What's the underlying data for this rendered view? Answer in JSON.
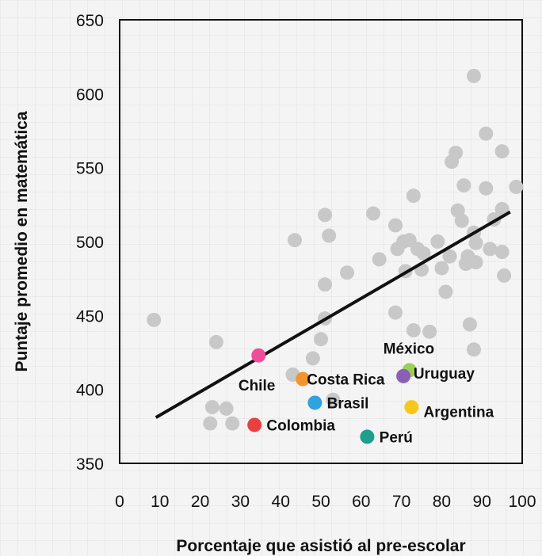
{
  "chart_data": {
    "type": "scatter",
    "xlabel": "Porcentaje que asistió al pre-escolar",
    "ylabel": "Puntaje promedio en matemática",
    "xlim": [
      0,
      100
    ],
    "ylim": [
      350,
      650
    ],
    "x_ticks": [
      0,
      10,
      20,
      30,
      40,
      50,
      60,
      70,
      80,
      90,
      100
    ],
    "y_ticks": [
      350,
      400,
      450,
      500,
      550,
      600,
      650
    ],
    "grid": false,
    "legend": "none",
    "colors": {
      "other": "#c8c8c8",
      "trend": "#111111",
      "frame": "#111111"
    },
    "trendline": {
      "x": [
        9,
        97
      ],
      "y": [
        381,
        520
      ]
    },
    "other_countries": [
      {
        "x": 8.5,
        "y": 447
      },
      {
        "x": 24,
        "y": 432
      },
      {
        "x": 23,
        "y": 388
      },
      {
        "x": 26.5,
        "y": 387
      },
      {
        "x": 22.5,
        "y": 377
      },
      {
        "x": 28,
        "y": 377
      },
      {
        "x": 43.5,
        "y": 501
      },
      {
        "x": 43,
        "y": 410
      },
      {
        "x": 48,
        "y": 421
      },
      {
        "x": 50,
        "y": 434
      },
      {
        "x": 51,
        "y": 448
      },
      {
        "x": 51,
        "y": 518
      },
      {
        "x": 52,
        "y": 504
      },
      {
        "x": 51,
        "y": 471
      },
      {
        "x": 53,
        "y": 393
      },
      {
        "x": 56.5,
        "y": 479
      },
      {
        "x": 63,
        "y": 519
      },
      {
        "x": 64.5,
        "y": 488
      },
      {
        "x": 68.5,
        "y": 511
      },
      {
        "x": 69,
        "y": 495
      },
      {
        "x": 68.5,
        "y": 452
      },
      {
        "x": 70.5,
        "y": 500
      },
      {
        "x": 71,
        "y": 480
      },
      {
        "x": 72,
        "y": 501
      },
      {
        "x": 73,
        "y": 531
      },
      {
        "x": 73,
        "y": 440
      },
      {
        "x": 74,
        "y": 495
      },
      {
        "x": 75,
        "y": 481
      },
      {
        "x": 75.5,
        "y": 492
      },
      {
        "x": 77,
        "y": 439
      },
      {
        "x": 79,
        "y": 500
      },
      {
        "x": 80,
        "y": 482
      },
      {
        "x": 81,
        "y": 466
      },
      {
        "x": 82,
        "y": 490
      },
      {
        "x": 82.5,
        "y": 554
      },
      {
        "x": 83.5,
        "y": 560
      },
      {
        "x": 84,
        "y": 521
      },
      {
        "x": 85,
        "y": 514
      },
      {
        "x": 85.5,
        "y": 538
      },
      {
        "x": 86,
        "y": 485
      },
      {
        "x": 86.5,
        "y": 490
      },
      {
        "x": 87,
        "y": 444
      },
      {
        "x": 88,
        "y": 612
      },
      {
        "x": 88,
        "y": 427
      },
      {
        "x": 88,
        "y": 506
      },
      {
        "x": 88.5,
        "y": 499
      },
      {
        "x": 88.5,
        "y": 486
      },
      {
        "x": 91,
        "y": 573
      },
      {
        "x": 91,
        "y": 536
      },
      {
        "x": 92,
        "y": 495
      },
      {
        "x": 93,
        "y": 515
      },
      {
        "x": 95,
        "y": 561
      },
      {
        "x": 95,
        "y": 522
      },
      {
        "x": 95,
        "y": 493
      },
      {
        "x": 95.5,
        "y": 477
      },
      {
        "x": 98.5,
        "y": 537
      }
    ],
    "highlighted_countries": [
      {
        "name": "Chile",
        "x": 34.5,
        "y": 423,
        "color": "#ee4d9b",
        "label_x": 29.5,
        "label_y": 403
      },
      {
        "name": "Costa Rica",
        "x": 45.5,
        "y": 407,
        "color": "#f3952e",
        "label_x": 46.5,
        "label_y": 407
      },
      {
        "name": "Brasil",
        "x": 48.5,
        "y": 391,
        "color": "#2fa3dd",
        "label_x": 51.5,
        "label_y": 391
      },
      {
        "name": "Colombia",
        "x": 33.5,
        "y": 376,
        "color": "#e84040",
        "label_x": 36.5,
        "label_y": 376
      },
      {
        "name": "Perú",
        "x": 61.5,
        "y": 368,
        "color": "#1e9e8c",
        "label_x": 64.5,
        "label_y": 368
      },
      {
        "name": "México",
        "x": 72,
        "y": 413,
        "color": "#9bcf55",
        "label_x": 65.5,
        "label_y": 428
      },
      {
        "name": "Uruguay",
        "x": 70.5,
        "y": 409,
        "color": "#8b5fb5",
        "label_x": 73,
        "label_y": 411
      },
      {
        "name": "Argentina",
        "x": 72.5,
        "y": 388,
        "color": "#f6c81b",
        "label_x": 75.5,
        "label_y": 385
      }
    ]
  }
}
